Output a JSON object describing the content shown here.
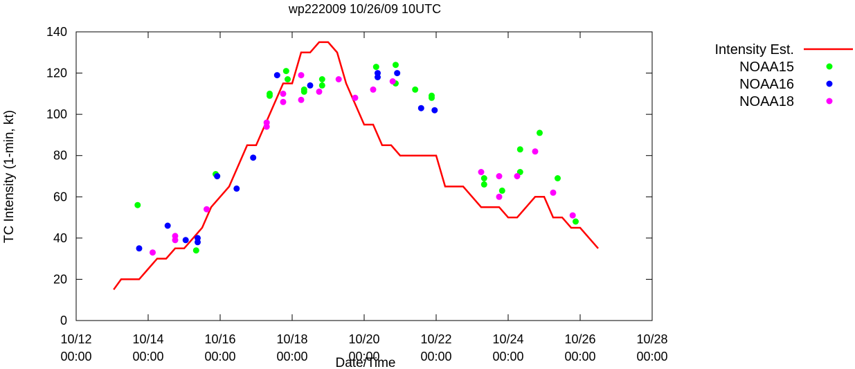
{
  "chart_data": {
    "type": "line",
    "title": "wp222009 10/26/09 10UTC",
    "xlabel": "Date/Time",
    "ylabel": "TC Intensity (1-min, kt)",
    "ylim": [
      0,
      140
    ],
    "yticks": [
      0,
      20,
      40,
      60,
      80,
      100,
      120,
      140
    ],
    "xlim": [
      "2009-10-12 00:00",
      "2009-10-28 00:00"
    ],
    "xticks": [
      {
        "date": "2009-10-12 00:00",
        "line1": "10/12",
        "line2": "00:00"
      },
      {
        "date": "2009-10-14 00:00",
        "line1": "10/14",
        "line2": "00:00"
      },
      {
        "date": "2009-10-16 00:00",
        "line1": "10/16",
        "line2": "00:00"
      },
      {
        "date": "2009-10-18 00:00",
        "line1": "10/18",
        "line2": "00:00"
      },
      {
        "date": "2009-10-20 00:00",
        "line1": "10/20",
        "line2": "00:00"
      },
      {
        "date": "2009-10-22 00:00",
        "line1": "10/22",
        "line2": "00:00"
      },
      {
        "date": "2009-10-24 00:00",
        "line1": "10/24",
        "line2": "00:00"
      },
      {
        "date": "2009-10-26 00:00",
        "line1": "10/26",
        "line2": "00:00"
      },
      {
        "date": "2009-10-28 00:00",
        "line1": "10/28",
        "line2": "00:00"
      }
    ],
    "grid": false,
    "legend_position": "top-right, outside plot",
    "series": [
      {
        "name": "Intensity Est.",
        "kind": "line",
        "color": "#ff0000",
        "points": [
          [
            "2009-10-13 01:00",
            15
          ],
          [
            "2009-10-13 06:00",
            20
          ],
          [
            "2009-10-13 13:00",
            20
          ],
          [
            "2009-10-13 18:00",
            20
          ],
          [
            "2009-10-14 00:00",
            25
          ],
          [
            "2009-10-14 06:00",
            30
          ],
          [
            "2009-10-14 12:00",
            30
          ],
          [
            "2009-10-14 18:00",
            35
          ],
          [
            "2009-10-15 00:00",
            35
          ],
          [
            "2009-10-15 06:00",
            40
          ],
          [
            "2009-10-15 12:00",
            45
          ],
          [
            "2009-10-15 18:00",
            55
          ],
          [
            "2009-10-16 00:00",
            60
          ],
          [
            "2009-10-16 06:00",
            65
          ],
          [
            "2009-10-16 12:00",
            75
          ],
          [
            "2009-10-16 18:00",
            85
          ],
          [
            "2009-10-17 00:00",
            85
          ],
          [
            "2009-10-17 06:00",
            95
          ],
          [
            "2009-10-17 12:00",
            105
          ],
          [
            "2009-10-17 18:00",
            115
          ],
          [
            "2009-10-18 00:00",
            115
          ],
          [
            "2009-10-18 06:00",
            130
          ],
          [
            "2009-10-18 12:00",
            130
          ],
          [
            "2009-10-18 18:00",
            135
          ],
          [
            "2009-10-19 00:00",
            135
          ],
          [
            "2009-10-19 06:00",
            130
          ],
          [
            "2009-10-19 12:00",
            115
          ],
          [
            "2009-10-19 18:00",
            105
          ],
          [
            "2009-10-20 00:00",
            95
          ],
          [
            "2009-10-20 06:00",
            95
          ],
          [
            "2009-10-20 12:00",
            85
          ],
          [
            "2009-10-20 18:00",
            85
          ],
          [
            "2009-10-21 00:00",
            80
          ],
          [
            "2009-10-21 12:00",
            80
          ],
          [
            "2009-10-22 00:00",
            80
          ],
          [
            "2009-10-22 06:00",
            65
          ],
          [
            "2009-10-22 18:00",
            65
          ],
          [
            "2009-10-23 00:00",
            60
          ],
          [
            "2009-10-23 06:00",
            55
          ],
          [
            "2009-10-23 18:00",
            55
          ],
          [
            "2009-10-24 00:00",
            50
          ],
          [
            "2009-10-24 06:00",
            50
          ],
          [
            "2009-10-24 12:00",
            55
          ],
          [
            "2009-10-24 18:00",
            60
          ],
          [
            "2009-10-25 00:00",
            60
          ],
          [
            "2009-10-25 06:00",
            50
          ],
          [
            "2009-10-25 12:00",
            50
          ],
          [
            "2009-10-25 18:00",
            45
          ],
          [
            "2009-10-26 00:00",
            45
          ],
          [
            "2009-10-26 06:00",
            40
          ],
          [
            "2009-10-26 12:00",
            35
          ]
        ]
      },
      {
        "name": "NOAA15",
        "kind": "scatter",
        "color": "#00ff00",
        "points": [
          [
            "2009-10-13 17:00",
            56
          ],
          [
            "2009-10-15 08:00",
            34
          ],
          [
            "2009-10-15 21:00",
            71
          ],
          [
            "2009-10-15 22:00",
            70
          ],
          [
            "2009-10-17 09:00",
            110
          ],
          [
            "2009-10-17 09:00",
            109
          ],
          [
            "2009-10-17 20:00",
            121
          ],
          [
            "2009-10-17 21:00",
            117
          ],
          [
            "2009-10-18 08:00",
            112
          ],
          [
            "2009-10-18 08:00",
            111
          ],
          [
            "2009-10-18 20:00",
            117
          ],
          [
            "2009-10-18 20:00",
            114
          ],
          [
            "2009-10-20 08:00",
            123
          ],
          [
            "2009-10-20 21:00",
            124
          ],
          [
            "2009-10-20 21:00",
            115
          ],
          [
            "2009-10-21 10:00",
            112
          ],
          [
            "2009-10-21 21:00",
            109
          ],
          [
            "2009-10-21 21:00",
            108
          ],
          [
            "2009-10-23 08:00",
            69
          ],
          [
            "2009-10-23 08:00",
            66
          ],
          [
            "2009-10-23 20:00",
            63
          ],
          [
            "2009-10-24 08:00",
            83
          ],
          [
            "2009-10-24 08:00",
            72
          ],
          [
            "2009-10-24 21:00",
            91
          ],
          [
            "2009-10-25 09:00",
            69
          ],
          [
            "2009-10-25 21:00",
            48
          ]
        ]
      },
      {
        "name": "NOAA16",
        "kind": "scatter",
        "color": "#0000ff",
        "points": [
          [
            "2009-10-13 18:00",
            35
          ],
          [
            "2009-10-14 13:00",
            46
          ],
          [
            "2009-10-15 01:00",
            39
          ],
          [
            "2009-10-15 09:00",
            40
          ],
          [
            "2009-10-15 09:00",
            38
          ],
          [
            "2009-10-15 22:00",
            70
          ],
          [
            "2009-10-16 11:00",
            64
          ],
          [
            "2009-10-16 22:00",
            79
          ],
          [
            "2009-10-17 14:00",
            119
          ],
          [
            "2009-10-18 12:00",
            114
          ],
          [
            "2009-10-20 09:00",
            120
          ],
          [
            "2009-10-20 09:00",
            118
          ],
          [
            "2009-10-20 22:00",
            120
          ],
          [
            "2009-10-21 14:00",
            103
          ],
          [
            "2009-10-21 23:00",
            102
          ]
        ]
      },
      {
        "name": "NOAA18",
        "kind": "scatter",
        "color": "#ff00ff",
        "points": [
          [
            "2009-10-14 03:00",
            33
          ],
          [
            "2009-10-14 18:00",
            41
          ],
          [
            "2009-10-14 18:00",
            39
          ],
          [
            "2009-10-15 15:00",
            54
          ],
          [
            "2009-10-17 07:00",
            96
          ],
          [
            "2009-10-17 07:00",
            94
          ],
          [
            "2009-10-17 18:00",
            110
          ],
          [
            "2009-10-17 18:00",
            106
          ],
          [
            "2009-10-18 06:00",
            119
          ],
          [
            "2009-10-18 06:00",
            107
          ],
          [
            "2009-10-18 18:00",
            111
          ],
          [
            "2009-10-19 07:00",
            117
          ],
          [
            "2009-10-19 18:00",
            108
          ],
          [
            "2009-10-20 06:00",
            112
          ],
          [
            "2009-10-20 19:00",
            116
          ],
          [
            "2009-10-23 06:00",
            72
          ],
          [
            "2009-10-23 18:00",
            70
          ],
          [
            "2009-10-23 18:00",
            60
          ],
          [
            "2009-10-24 06:00",
            70
          ],
          [
            "2009-10-24 18:00",
            82
          ],
          [
            "2009-10-25 06:00",
            62
          ],
          [
            "2009-10-25 19:00",
            51
          ]
        ]
      }
    ]
  }
}
